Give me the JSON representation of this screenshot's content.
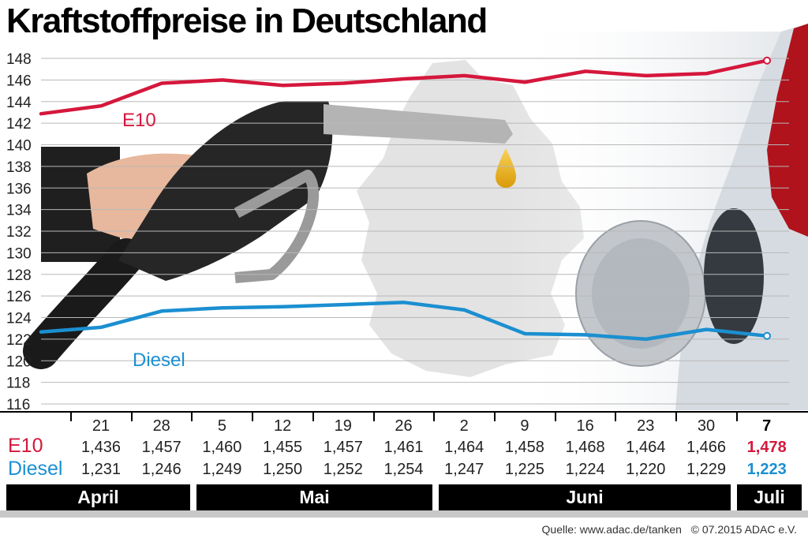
{
  "chart_data": {
    "type": "line",
    "title": "Kraftstoffpreise in Deutschland",
    "yticks": [
      116,
      118,
      120,
      122,
      124,
      126,
      128,
      130,
      132,
      134,
      136,
      138,
      140,
      142,
      144,
      146,
      148
    ],
    "ylim": [
      115,
      149
    ],
    "categories": [
      "21",
      "28",
      "5",
      "12",
      "19",
      "26",
      "2",
      "9",
      "16",
      "23",
      "30",
      "7"
    ],
    "months": [
      {
        "label": "April",
        "from": 0,
        "to": 1
      },
      {
        "label": "Mai",
        "from": 2,
        "to": 5
      },
      {
        "label": "Juni",
        "from": 6,
        "to": 10
      },
      {
        "label": "Juli",
        "from": 11,
        "to": 11
      }
    ],
    "highlight_index": 11,
    "series": [
      {
        "name": "E10",
        "color": "#d5173c",
        "highlight_color": "#d5173c",
        "values": [
          143.6,
          145.7,
          146.0,
          145.5,
          145.7,
          146.1,
          146.4,
          145.8,
          146.8,
          146.4,
          146.6,
          147.8
        ],
        "labels": [
          "1,436",
          "1,457",
          "1,460",
          "1,455",
          "1,457",
          "1,461",
          "1,464",
          "1,458",
          "1,468",
          "1,464",
          "1,466",
          "1,478"
        ]
      },
      {
        "name": "Diesel",
        "color": "#1b8fd0",
        "highlight_color": "#1b8fd0",
        "values": [
          123.1,
          124.6,
          124.9,
          125.0,
          125.2,
          125.4,
          124.7,
          122.5,
          122.4,
          122.0,
          122.9,
          122.3
        ],
        "labels": [
          "1,231",
          "1,246",
          "1,249",
          "1,250",
          "1,252",
          "1,254",
          "1,247",
          "1,225",
          "1,224",
          "1,220",
          "1,229",
          "1,223"
        ]
      }
    ]
  },
  "footer": {
    "source": "Quelle: www.adac.de/tanken",
    "copyright": "© 07.2015  ADAC e.V."
  }
}
